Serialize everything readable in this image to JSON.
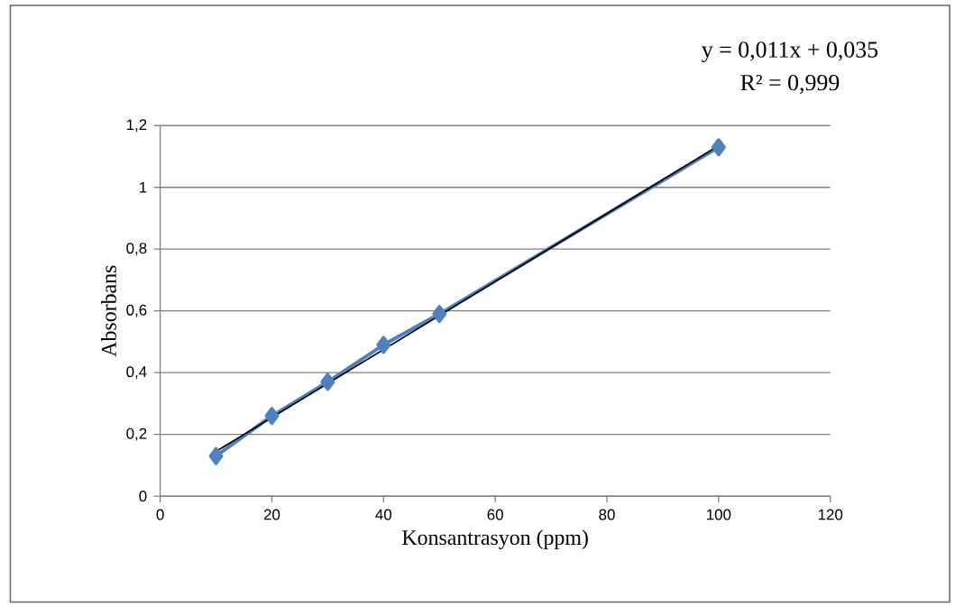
{
  "chart_data": {
    "type": "line",
    "xlabel": "Konsantrasyon (ppm)",
    "ylabel": "Absorbans",
    "annotations": [
      "y = 0,011x + 0,035",
      "R² = 0,999"
    ],
    "series": [
      {
        "color": "#4f81bd",
        "marker": "diamond",
        "x": [
          10,
          20,
          30,
          40,
          50,
          100
        ],
        "values": [
          0.13,
          0.26,
          0.37,
          0.49,
          0.59,
          1.13
        ]
      },
      {
        "color": "#000000",
        "marker": "none",
        "x": [
          10,
          100
        ],
        "values": [
          0.145,
          1.135
        ]
      }
    ],
    "xlim": [
      0,
      120
    ],
    "xticks": [
      0,
      20,
      40,
      60,
      80,
      100,
      120
    ],
    "ylim": [
      0,
      1.2
    ],
    "yticks": [
      {
        "value": 0,
        "label": "0"
      },
      {
        "value": 0.2,
        "label": "0,2"
      },
      {
        "value": 0.4,
        "label": "0,4"
      },
      {
        "value": 0.6,
        "label": "0,6"
      },
      {
        "value": 0.8,
        "label": "0,8"
      },
      {
        "value": 1,
        "label": "1"
      },
      {
        "value": 1.2,
        "label": "1,2"
      }
    ],
    "grid": "y"
  }
}
